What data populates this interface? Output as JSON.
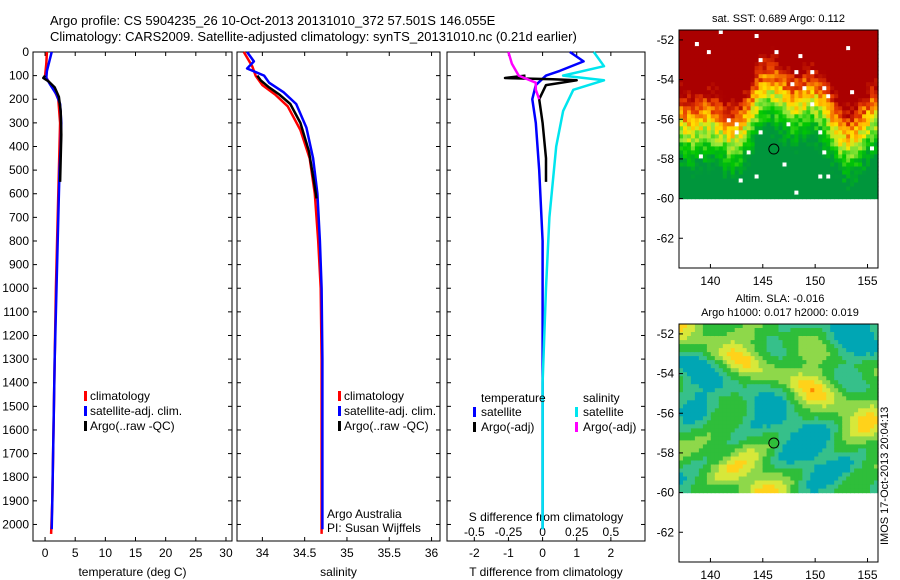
{
  "header": {
    "line1": "Argo profile: CS 5904235_26 10-Oct-2013 20131010_372 57.501S 146.055E",
    "line2": "Climatology: CARS2009. Satellite-adjusted climatology: synTS_20131010.nc (0.21d earlier)"
  },
  "side_stamp": "IMOS 17-Oct-2013 20:04:13",
  "colors": {
    "climatology": "#ff0000",
    "satellite": "#0000ff",
    "argo": "#000000",
    "sat_sal": "#00e5ee",
    "argo_sal": "#ff00ff"
  },
  "depth_axis": {
    "ticks": [
      0,
      100,
      200,
      300,
      400,
      500,
      600,
      700,
      800,
      900,
      1000,
      1100,
      1200,
      1300,
      1400,
      1500,
      1600,
      1700,
      1800,
      1900,
      2000
    ],
    "max": 2070
  },
  "chart_data": [
    {
      "type": "line",
      "id": "temperature",
      "xlabel": "temperature (deg C)",
      "ylabel": "",
      "xlim": [
        -2,
        31
      ],
      "xticks": [
        0,
        5,
        10,
        15,
        20,
        25,
        30
      ],
      "ylim": [
        0,
        2070
      ],
      "y_inverted": true,
      "legend": {
        "placement": "lower-left",
        "entries": [
          "climatology",
          "satellite-adj. clim.",
          "Argo(..raw -QC)"
        ]
      },
      "series": [
        {
          "name": "climatology",
          "color": "#ff0000",
          "points": [
            [
              0.3,
              0
            ],
            [
              0.2,
              50
            ],
            [
              0.0,
              100
            ],
            [
              0.7,
              130
            ],
            [
              1.5,
              160
            ],
            [
              2.2,
              200
            ],
            [
              2.5,
              300
            ],
            [
              2.4,
              400
            ],
            [
              2.3,
              500
            ],
            [
              2.2,
              600
            ],
            [
              2.0,
              800
            ],
            [
              1.8,
              1000
            ],
            [
              1.6,
              1300
            ],
            [
              1.4,
              1600
            ],
            [
              1.2,
              1900
            ],
            [
              1.0,
              2040
            ]
          ]
        },
        {
          "name": "satellite-adj. clim.",
          "color": "#0000ff",
          "points": [
            [
              1.1,
              0
            ],
            [
              0.7,
              40
            ],
            [
              0.3,
              80
            ],
            [
              0.2,
              110
            ],
            [
              0.9,
              140
            ],
            [
              1.9,
              180
            ],
            [
              2.5,
              220
            ],
            [
              2.7,
              300
            ],
            [
              2.6,
              400
            ],
            [
              2.4,
              500
            ],
            [
              2.2,
              700
            ],
            [
              2.0,
              900
            ],
            [
              1.8,
              1100
            ],
            [
              1.6,
              1300
            ],
            [
              1.4,
              1600
            ],
            [
              1.2,
              1900
            ],
            [
              1.1,
              2020
            ]
          ]
        },
        {
          "name": "Argo(..raw -QC)",
          "color": "#000000",
          "points": [
            [
              0.0,
              100
            ],
            [
              -0.3,
              110
            ],
            [
              0.6,
              125
            ],
            [
              1.6,
              150
            ],
            [
              2.3,
              190
            ],
            [
              2.6,
              250
            ],
            [
              2.7,
              350
            ],
            [
              2.6,
              450
            ],
            [
              2.5,
              550
            ]
          ]
        }
      ]
    },
    {
      "type": "line",
      "id": "salinity",
      "xlabel": "salinity",
      "ylabel": "",
      "xlim": [
        33.7,
        36.1
      ],
      "xticks": [
        34,
        34.5,
        35,
        35.5,
        36
      ],
      "xtick_labels": [
        "34",
        "34.5",
        "35",
        "35.5",
        "36"
      ],
      "ylim": [
        0,
        2070
      ],
      "y_inverted": true,
      "legend": {
        "placement": "lower-right",
        "entries": [
          "climatology",
          "satellite-adj. clim.",
          "Argo(..raw -QC)"
        ]
      },
      "annotation": [
        "Argo Australia",
        "PI: Susan Wijffels"
      ],
      "series": [
        {
          "name": "climatology",
          "color": "#ff0000",
          "points": [
            [
              33.78,
              0
            ],
            [
              33.88,
              60
            ],
            [
              33.92,
              100
            ],
            [
              34.0,
              140
            ],
            [
              34.15,
              180
            ],
            [
              34.3,
              230
            ],
            [
              34.45,
              330
            ],
            [
              34.56,
              450
            ],
            [
              34.62,
              600
            ],
            [
              34.66,
              800
            ],
            [
              34.69,
              1000
            ],
            [
              34.7,
              1300
            ],
            [
              34.7,
              1600
            ],
            [
              34.7,
              1900
            ],
            [
              34.7,
              2040
            ]
          ]
        },
        {
          "name": "satellite-adj. clim.",
          "color": "#0000ff",
          "points": [
            [
              33.82,
              0
            ],
            [
              33.9,
              40
            ],
            [
              33.82,
              70
            ],
            [
              34.02,
              100
            ],
            [
              34.08,
              130
            ],
            [
              34.25,
              170
            ],
            [
              34.4,
              220
            ],
            [
              34.52,
              320
            ],
            [
              34.6,
              450
            ],
            [
              34.65,
              600
            ],
            [
              34.68,
              800
            ],
            [
              34.7,
              1000
            ],
            [
              34.71,
              1300
            ],
            [
              34.71,
              1600
            ],
            [
              34.71,
              1900
            ],
            [
              34.71,
              2020
            ]
          ]
        },
        {
          "name": "Argo(..raw -QC)",
          "color": "#000000",
          "points": [
            [
              33.94,
              100
            ],
            [
              33.98,
              120
            ],
            [
              34.08,
              150
            ],
            [
              34.2,
              180
            ],
            [
              34.33,
              220
            ],
            [
              34.45,
              300
            ],
            [
              34.55,
              420
            ],
            [
              34.61,
              550
            ],
            [
              34.64,
              620
            ]
          ]
        }
      ]
    },
    {
      "type": "line",
      "id": "difference",
      "xlabel": "T difference from climatology",
      "xlabel2": "S difference from climatology",
      "xlim": [
        -2.8,
        3
      ],
      "xticks": [
        -2,
        -1,
        0,
        1,
        2
      ],
      "xticks2": [
        -0.5,
        -0.25,
        0,
        0.25,
        0.5
      ],
      "xticks2_labels": [
        "-0.5",
        "-0.25",
        "0",
        "0.25",
        "0.5"
      ],
      "ylim": [
        0,
        2070
      ],
      "y_inverted": true,
      "legend": {
        "placement": "lower-center",
        "headers": [
          "temperature",
          "salinity"
        ],
        "entries": [
          "satellite",
          "Argo(-adj)",
          "satellite",
          "Argo(-adj)"
        ]
      },
      "series": [
        {
          "name": "temperature satellite",
          "color": "#0000ff",
          "points": [
            [
              0.8,
              0
            ],
            [
              1.2,
              40
            ],
            [
              0.5,
              80
            ],
            [
              0.1,
              100
            ],
            [
              -0.2,
              140
            ],
            [
              -0.3,
              200
            ],
            [
              -0.2,
              300
            ],
            [
              -0.1,
              500
            ],
            [
              0.0,
              800
            ],
            [
              0.0,
              1200
            ],
            [
              0.0,
              1600
            ],
            [
              0.0,
              2020
            ]
          ]
        },
        {
          "name": "temperature Argo(-adj)",
          "color": "#000000",
          "points": [
            [
              -0.5,
              100
            ],
            [
              -1.1,
              110
            ],
            [
              0.3,
              115
            ],
            [
              1.0,
              120
            ],
            [
              0.1,
              140
            ],
            [
              -0.1,
              200
            ],
            [
              0.0,
              300
            ],
            [
              0.1,
              450
            ],
            [
              0.1,
              550
            ]
          ]
        },
        {
          "name": "salinity satellite",
          "color": "#00e5ee",
          "points": [
            [
              1.5,
              0
            ],
            [
              1.8,
              60
            ],
            [
              0.6,
              100
            ],
            [
              1.8,
              120
            ],
            [
              0.9,
              160
            ],
            [
              0.6,
              250
            ],
            [
              0.4,
              400
            ],
            [
              0.2,
              700
            ],
            [
              0.1,
              1000
            ],
            [
              0.0,
              1400
            ],
            [
              0.0,
              2020
            ]
          ]
        },
        {
          "name": "salinity Argo(-adj)",
          "color": "#ff00ff",
          "points": [
            [
              -1.0,
              0
            ],
            [
              -0.9,
              50
            ],
            [
              -0.7,
              100
            ],
            [
              -0.2,
              130
            ],
            [
              -0.2,
              160
            ],
            [
              -0.1,
              200
            ]
          ]
        }
      ]
    },
    {
      "type": "heatmap",
      "id": "sst_map",
      "title": "sat. SST: 0.689 Argo: 0.112",
      "xlim": [
        137,
        156
      ],
      "ylim": [
        -63.5,
        -51.5
      ],
      "xticks": [
        140,
        145,
        150,
        155
      ],
      "yticks": [
        -52,
        -54,
        -56,
        -58,
        -60,
        -62
      ],
      "marker": [
        146.055,
        -57.501
      ]
    },
    {
      "type": "heatmap",
      "id": "sla_map",
      "title_line1": "Altim. SLA: -0.016",
      "title_line2": "Argo h1000: 0.017 h2000: 0.019",
      "xlim": [
        137,
        156
      ],
      "ylim": [
        -63.5,
        -51.5
      ],
      "xticks": [
        140,
        145,
        150,
        155
      ],
      "yticks": [
        -52,
        -54,
        -56,
        -58,
        -60,
        -62
      ],
      "marker": [
        146.055,
        -57.501
      ]
    }
  ]
}
